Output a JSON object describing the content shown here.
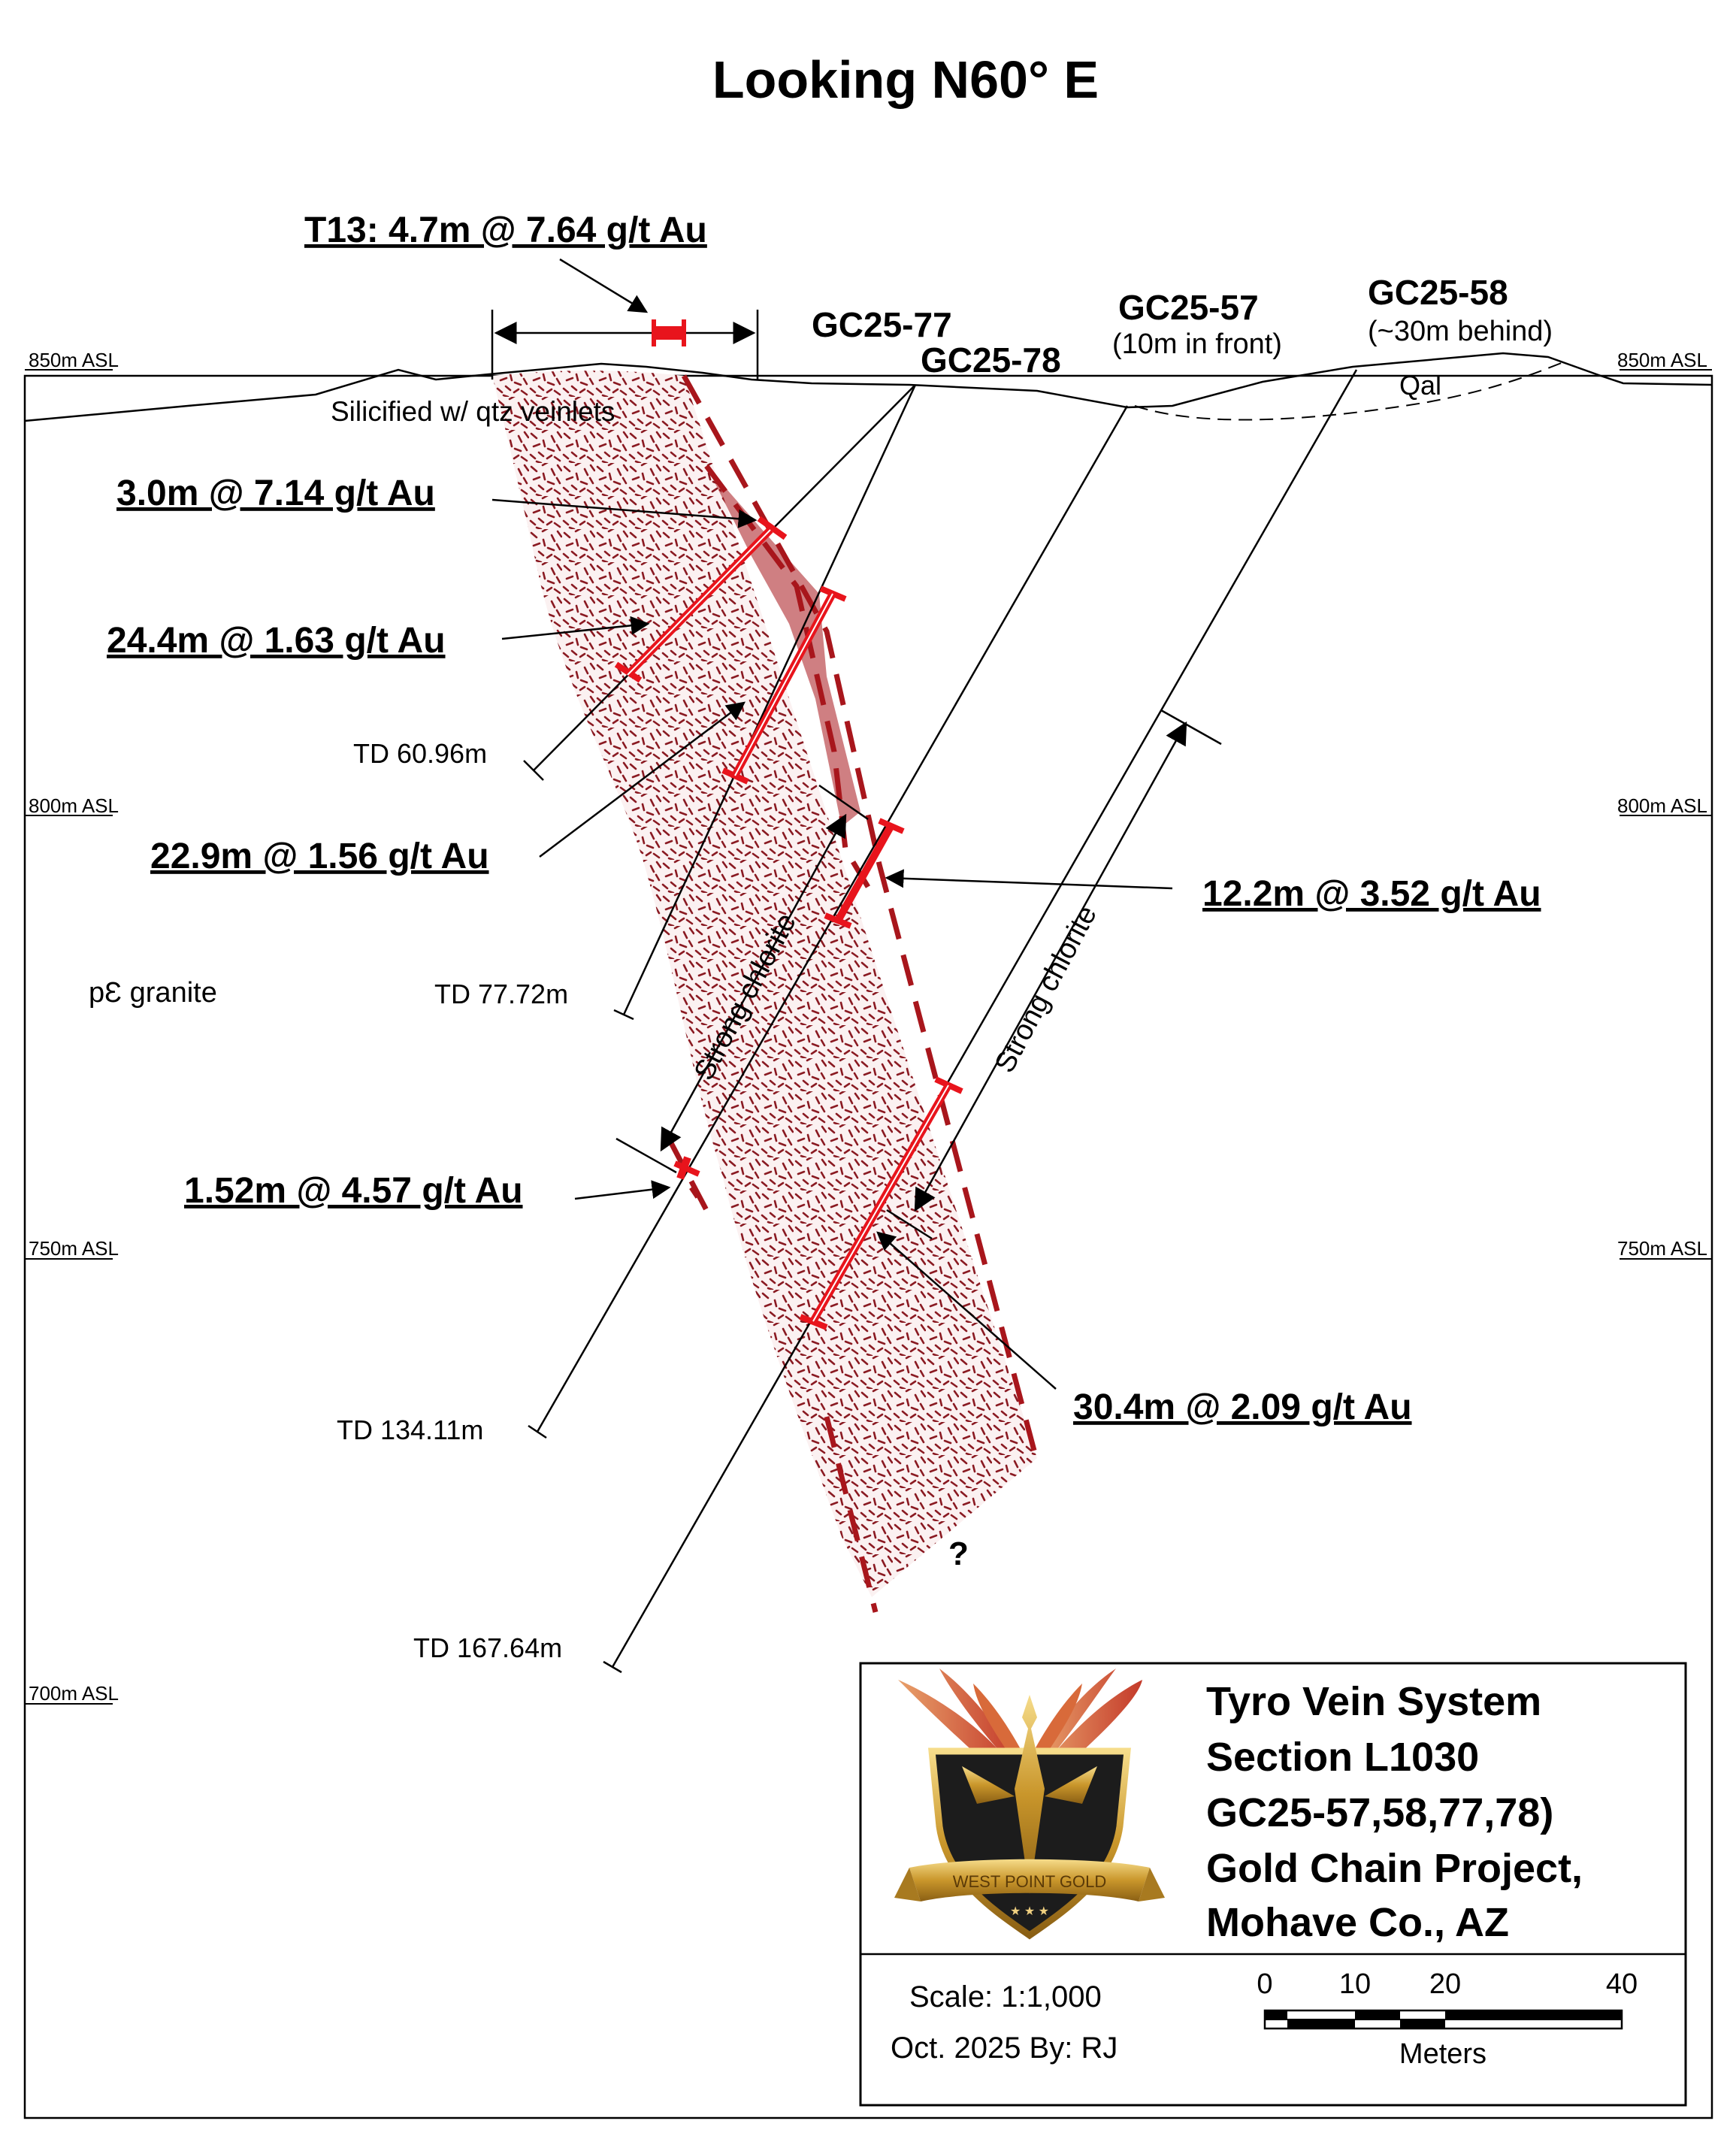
{
  "title": "Looking N60° E",
  "elevations": {
    "e850": "850m ASL",
    "e800": "800m ASL",
    "e750": "750m ASL",
    "e700": "700m ASL"
  },
  "holes": {
    "gc77": "GC25-77",
    "gc78": "GC25-78",
    "gc57": "GC25-57",
    "gc57_note": "(10m in front)",
    "gc58": "GC25-58",
    "gc58_note": "(~30m behind)"
  },
  "depths": {
    "td1": "TD 60.96m",
    "td2": "TD 77.72m",
    "td3": "TD 134.11m",
    "td4": "TD 167.64m"
  },
  "intercepts": {
    "t13": "T13:  4.7m @ 7.64 g/t Au",
    "i1": "3.0m @ 7.14 g/t Au",
    "i2": "24.4m @ 1.63 g/t Au",
    "i3": "22.9m @ 1.56 g/t Au",
    "i4": "12.2m @ 3.52 g/t Au",
    "i5": "1.52m @ 4.57 g/t Au",
    "i6": "30.4m @ 2.09 g/t Au"
  },
  "geology": {
    "silicified": "Silicified w/ qtz veinlets",
    "qal": "Qal",
    "granite": "pƐ granite",
    "chlorite1": "Strong chlorite",
    "chlorite2": "Strong chlorite",
    "unknown": "?"
  },
  "title_block": {
    "line1": "Tyro Vein System",
    "line2": "Section L1030",
    "line3": "GC25-57,58,77,78)",
    "line4": "Gold Chain Project,",
    "line5": "Mohave Co., AZ",
    "scale": "Scale: 1:1,000",
    "date": "Oct. 2025   By: RJ",
    "logo_text": "WEST POINT GOLD"
  },
  "scale_bar": {
    "t0": "0",
    "t10": "10",
    "t20": "20",
    "t40": "40",
    "unit": "Meters"
  },
  "colors": {
    "vein_red": "#e8141c",
    "zone_dark_red": "#a8161c",
    "stipple": "#8a1a22",
    "gold": "#c9962b"
  }
}
